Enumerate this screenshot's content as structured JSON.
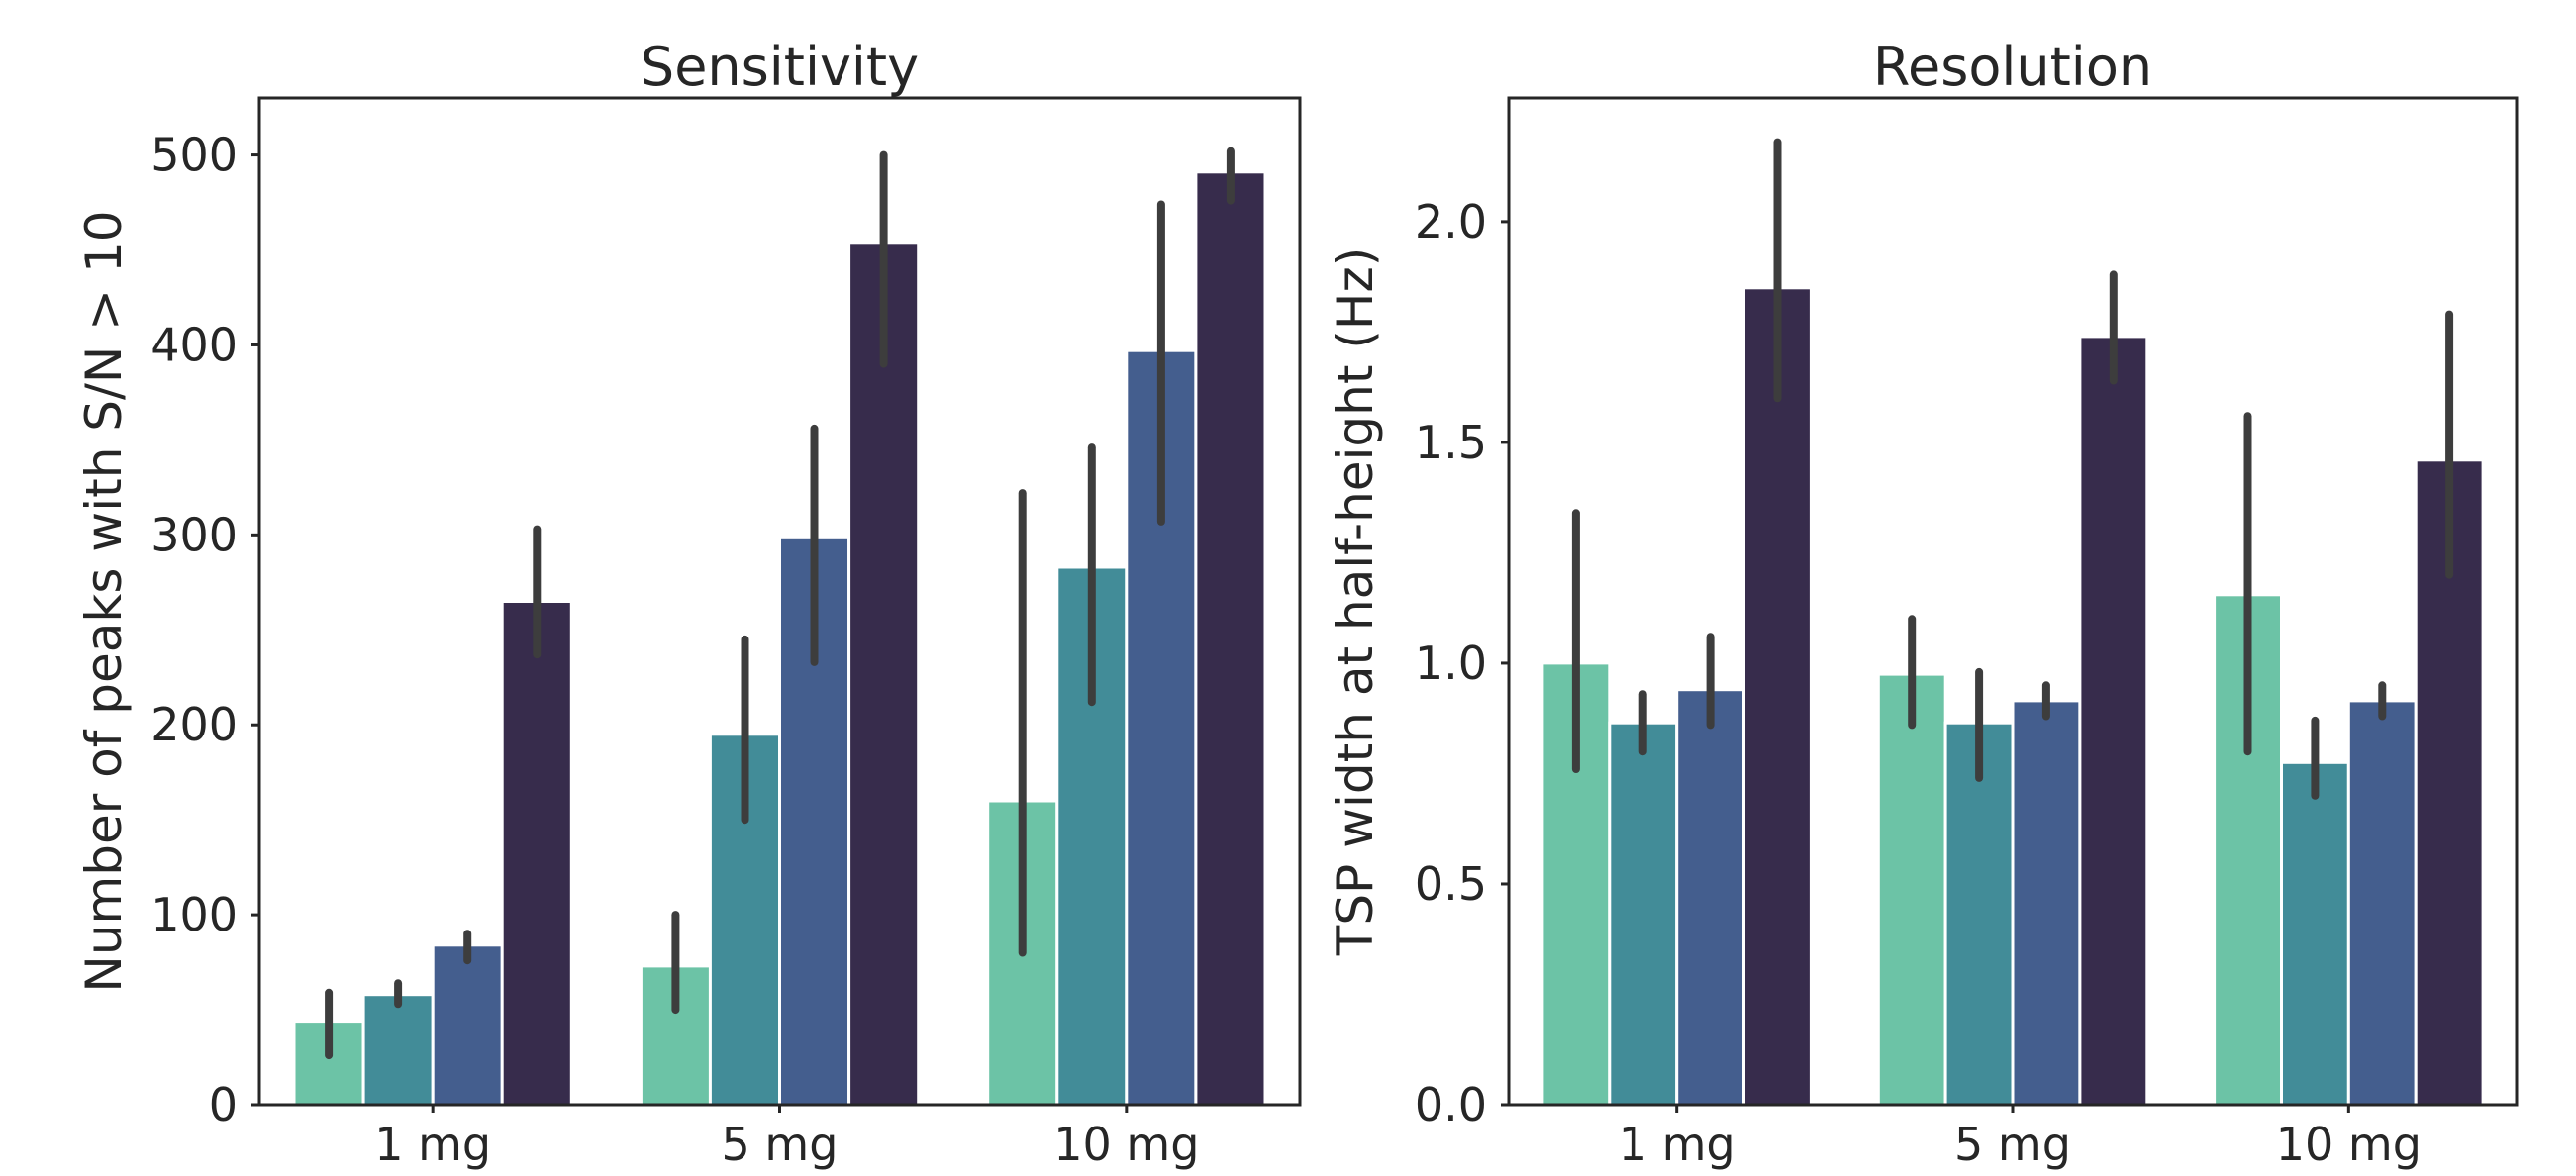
{
  "chart_data": [
    {
      "type": "bar",
      "title": "Sensitivity",
      "xlabel": "",
      "ylabel": "Number of peaks with S/N > 10",
      "categories": [
        "1 mg",
        "5 mg",
        "10 mg"
      ],
      "ylim": [
        0,
        530
      ],
      "yticks": [
        0,
        100,
        200,
        300,
        400,
        500
      ],
      "ytick_labels": [
        "0",
        "100",
        "200",
        "300",
        "400",
        "500"
      ],
      "grid": false,
      "legend": "none",
      "series": [
        {
          "color": "#6cc3a6",
          "values": [
            44,
            73,
            160
          ],
          "err_low": [
            26,
            50,
            80
          ],
          "err_high": [
            59,
            100,
            322
          ]
        },
        {
          "color": "#428c98",
          "values": [
            58,
            195,
            283
          ],
          "err_low": [
            53,
            150,
            212
          ],
          "err_high": [
            64,
            245,
            346
          ]
        },
        {
          "color": "#445e8e",
          "values": [
            84,
            299,
            397
          ],
          "err_low": [
            76,
            233,
            307
          ],
          "err_high": [
            90,
            356,
            474
          ]
        },
        {
          "color": "#372c4c",
          "values": [
            265,
            454,
            491
          ],
          "err_low": [
            237,
            390,
            476
          ],
          "err_high": [
            303,
            500,
            502
          ]
        }
      ]
    },
    {
      "type": "bar",
      "title": "Resolution",
      "xlabel": "",
      "ylabel": "TSP width at half-height (Hz)",
      "categories": [
        "1 mg",
        "5 mg",
        "10 mg"
      ],
      "ylim": [
        0,
        2.28
      ],
      "yticks": [
        0,
        0.5,
        1.0,
        1.5,
        2.0
      ],
      "ytick_labels": [
        "0.0",
        "0.5",
        "1.0",
        "1.5",
        "2.0"
      ],
      "grid": false,
      "legend": "none",
      "series": [
        {
          "color": "#6cc3a6",
          "values": [
            1.0,
            0.975,
            1.155
          ],
          "err_low": [
            0.76,
            0.86,
            0.8
          ],
          "err_high": [
            1.34,
            1.1,
            1.56
          ]
        },
        {
          "color": "#428c98",
          "values": [
            0.865,
            0.865,
            0.775
          ],
          "err_low": [
            0.8,
            0.74,
            0.7
          ],
          "err_high": [
            0.93,
            0.98,
            0.87
          ]
        },
        {
          "color": "#445e8e",
          "values": [
            0.94,
            0.915,
            0.915
          ],
          "err_low": [
            0.86,
            0.88,
            0.88
          ],
          "err_high": [
            1.06,
            0.95,
            0.95
          ]
        },
        {
          "color": "#372c4c",
          "values": [
            1.85,
            1.74,
            1.46
          ],
          "err_low": [
            1.6,
            1.64,
            1.2
          ],
          "err_high": [
            2.18,
            1.88,
            1.79
          ]
        }
      ]
    }
  ]
}
